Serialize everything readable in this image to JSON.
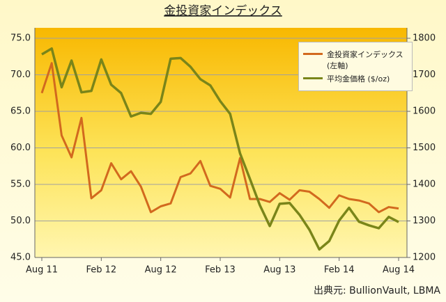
{
  "chart_data": {
    "type": "line",
    "title": "金投資家インデックス",
    "source": "出典元: BullionVault, LBMA",
    "categories": [
      "Aug 11",
      null,
      null,
      null,
      null,
      null,
      "Feb 12",
      null,
      null,
      null,
      null,
      null,
      "Aug 12",
      null,
      null,
      null,
      null,
      null,
      "Feb 13",
      null,
      null,
      null,
      null,
      null,
      "Aug 13",
      null,
      null,
      null,
      null,
      null,
      "Feb 14",
      null,
      null,
      null,
      null,
      null,
      "Aug 14"
    ],
    "series": [
      {
        "name": "金投資家インデックス (左軸)",
        "color": "#d2691e",
        "values": [
          67.5,
          71.6,
          61.7,
          58.7,
          64.1,
          53.1,
          54.2,
          57.9,
          55.7,
          56.8,
          54.7,
          51.2,
          52.0,
          52.4,
          56.0,
          56.5,
          58.2,
          54.8,
          54.4,
          53.2,
          58.6,
          53.0,
          53.0,
          52.6,
          53.8,
          52.9,
          54.2,
          54.0,
          53.0,
          51.8,
          53.5,
          53.0,
          52.8,
          52.4,
          51.2,
          51.9,
          51.7
        ]
      },
      {
        "name": "平均金価格 ($/oz)",
        "color": "#7a8519",
        "axis": "y2",
        "values": [
          1756,
          1772,
          1666,
          1739,
          1652,
          1656,
          1742,
          1673,
          1650,
          1586,
          1596,
          1593,
          1626,
          1744,
          1746,
          1722,
          1688,
          1671,
          1628,
          1593,
          1485,
          1415,
          1343,
          1286,
          1347,
          1349,
          1317,
          1276,
          1222,
          1245,
          1301,
          1336,
          1298,
          1288,
          1280,
          1311,
          1297
        ]
      }
    ],
    "ylim": [
      45,
      75
    ],
    "yticks": [
      {
        "value": 45,
        "label": "45.0"
      },
      {
        "value": 50,
        "label": "50.0"
      },
      {
        "value": 55,
        "label": "55.0"
      },
      {
        "value": 60,
        "label": "60.0"
      },
      {
        "value": 65,
        "label": "65.0"
      },
      {
        "value": 70,
        "label": "70.0"
      },
      {
        "value": 75,
        "label": "75.0"
      }
    ],
    "y2lim": [
      1200,
      1800
    ],
    "y2ticks": [
      1200,
      1300,
      1400,
      1500,
      1600,
      1700,
      1800
    ],
    "grid": true
  }
}
